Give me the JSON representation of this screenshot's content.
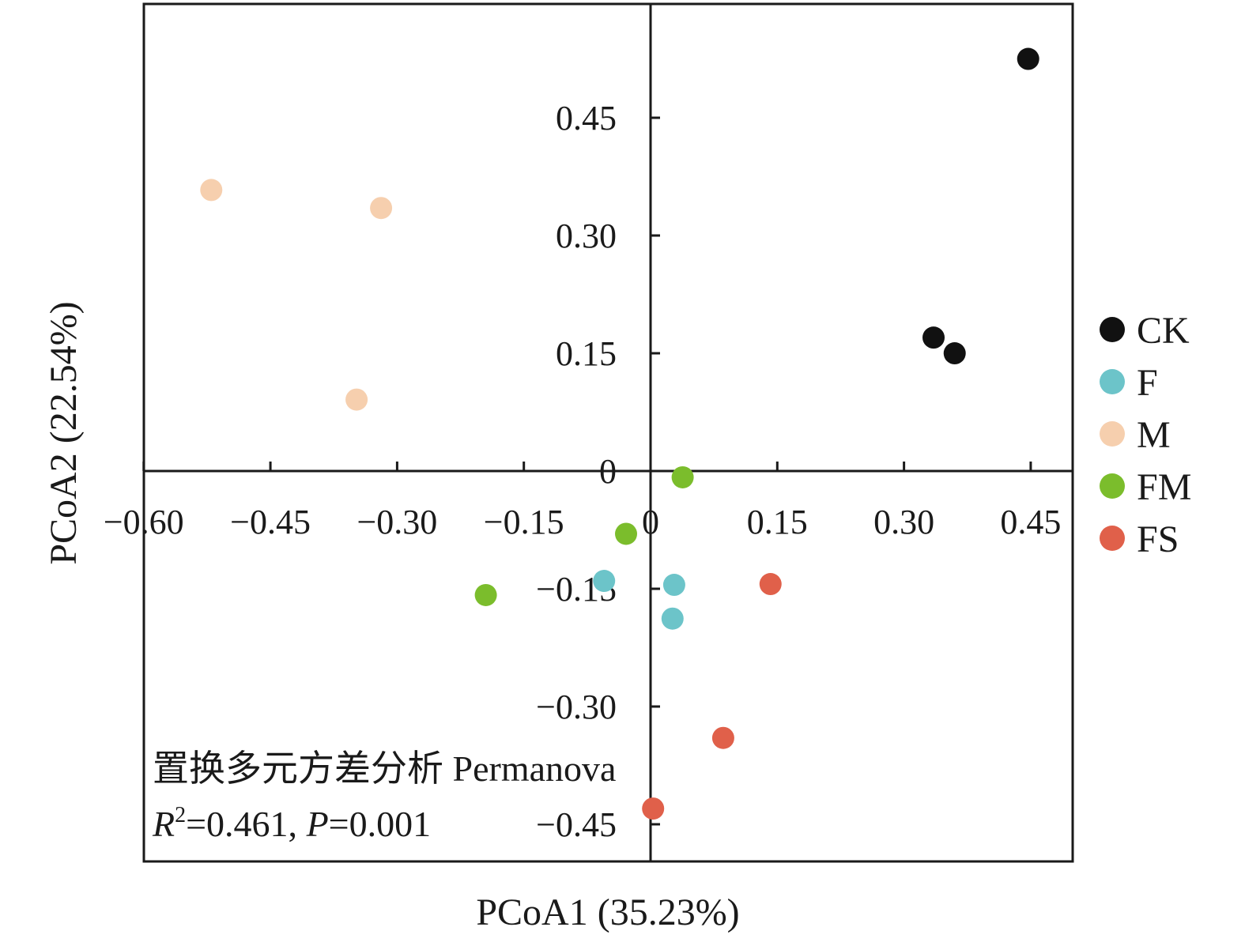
{
  "chart_data": {
    "type": "scatter",
    "xlabel": "PCoA1 (35.23%)",
    "ylabel": "PCoA2 (22.54%)",
    "xlim": [
      -0.6,
      0.5
    ],
    "ylim": [
      -0.48,
      0.58
    ],
    "x_ticks": [
      -0.6,
      -0.45,
      -0.3,
      -0.15,
      0,
      0.15,
      0.3,
      0.45
    ],
    "x_tick_labels": [
      "−0.60",
      "−0.45",
      "−0.30",
      "−0.15",
      "0",
      "0.15",
      "0.30",
      "0.45"
    ],
    "y_ticks": [
      0.45,
      0.3,
      0.15,
      0,
      -0.15,
      -0.3,
      -0.45
    ],
    "y_tick_labels": [
      "0.45",
      "0.30",
      "0.15",
      "0",
      "−0.15",
      "−0.30",
      "−0.45"
    ],
    "grid": false,
    "legend_position": "right",
    "series": [
      {
        "name": "CK",
        "color": "#111111",
        "points": [
          [
            0.447,
            0.525
          ],
          [
            0.335,
            0.17
          ],
          [
            0.36,
            0.15
          ]
        ]
      },
      {
        "name": "F",
        "color": "#6cc4c9",
        "points": [
          [
            -0.055,
            -0.14
          ],
          [
            0.028,
            -0.145
          ],
          [
            0.026,
            -0.188
          ]
        ]
      },
      {
        "name": "M",
        "color": "#f6cfae",
        "points": [
          [
            -0.52,
            0.358
          ],
          [
            -0.319,
            0.335
          ],
          [
            -0.348,
            0.091
          ]
        ]
      },
      {
        "name": "FM",
        "color": "#7bbd2c",
        "points": [
          [
            0.038,
            -0.008
          ],
          [
            -0.029,
            -0.08
          ],
          [
            -0.195,
            -0.158
          ]
        ]
      },
      {
        "name": "FS",
        "color": "#e0604a",
        "points": [
          [
            0.142,
            -0.144
          ],
          [
            0.086,
            -0.34
          ],
          [
            0.003,
            -0.43
          ]
        ]
      }
    ],
    "annotation": {
      "line1": "置换多元方差分析 Permanova",
      "r_symbol": "R",
      "r_sup": "2",
      "r_value": "=0.461, ",
      "p_symbol": "P",
      "p_value": "=0.001"
    }
  }
}
